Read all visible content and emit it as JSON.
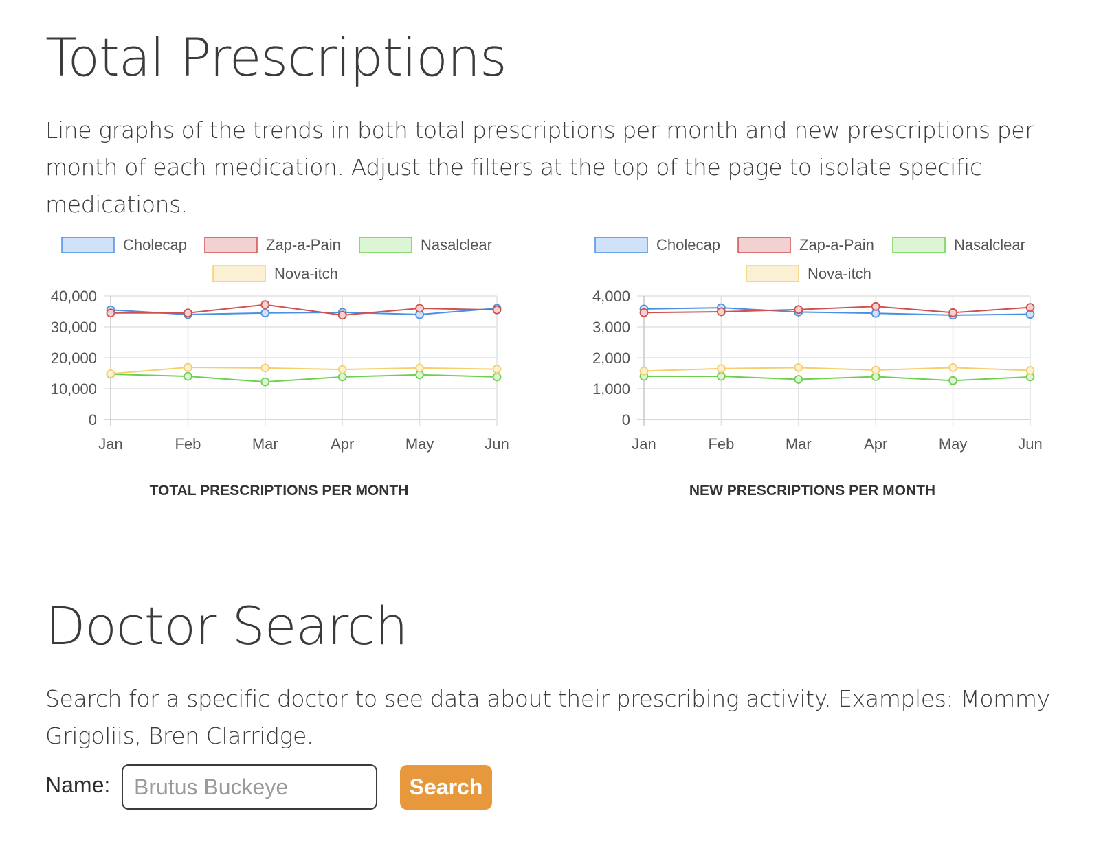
{
  "total_section": {
    "title": "Total Prescriptions",
    "description": "Line graphs of the trends in both total prescriptions per month and new prescriptions per month of each medication. Adjust the filters at the top of the page to isolate specific medications."
  },
  "doctor_section": {
    "title": "Doctor Search",
    "description": "Search for a specific doctor to see data about their prescribing activity. Examples: Mommy Grigoliis, Bren Clarridge.",
    "name_label": "Name:",
    "name_placeholder": "Brutus Buckeye",
    "search_button": "Search"
  },
  "chart_data": [
    {
      "type": "line",
      "title": "TOTAL PRESCRIPTIONS PER MONTH",
      "categories": [
        "Jan",
        "Feb",
        "Mar",
        "Apr",
        "May",
        "Jun"
      ],
      "ylim": [
        0,
        40000
      ],
      "yticks": [
        0,
        10000,
        20000,
        30000,
        40000
      ],
      "ytick_labels": [
        "0",
        "10,000",
        "20,000",
        "30,000",
        "40,000"
      ],
      "grid": true,
      "legend_position": "top",
      "series": [
        {
          "name": "Cholecap",
          "color": "#4a90e2",
          "fill": "#cfe2f9",
          "values": [
            35500,
            34000,
            34500,
            34700,
            34000,
            36000
          ]
        },
        {
          "name": "Zap-a-Pain",
          "color": "#d05050",
          "fill": "#f3d1d1",
          "values": [
            34500,
            34500,
            37200,
            33800,
            36000,
            35500
          ]
        },
        {
          "name": "Nasalclear",
          "color": "#6ecf4e",
          "fill": "#dcf5d4",
          "values": [
            14700,
            14000,
            12200,
            13800,
            14500,
            13800
          ]
        },
        {
          "name": "Nova-itch",
          "color": "#f5cf6e",
          "fill": "#fcf0d4",
          "values": [
            14800,
            16900,
            16700,
            16200,
            16700,
            16300
          ]
        }
      ]
    },
    {
      "type": "line",
      "title": "NEW PRESCRIPTIONS PER MONTH",
      "categories": [
        "Jan",
        "Feb",
        "Mar",
        "Apr",
        "May",
        "Jun"
      ],
      "ylim": [
        0,
        4000
      ],
      "yticks": [
        0,
        1000,
        2000,
        3000,
        4000
      ],
      "ytick_labels": [
        "0",
        "1,000",
        "2,000",
        "3,000",
        "4,000"
      ],
      "grid": true,
      "legend_position": "top",
      "series": [
        {
          "name": "Cholecap",
          "color": "#4a90e2",
          "fill": "#cfe2f9",
          "values": [
            3580,
            3620,
            3480,
            3440,
            3380,
            3410
          ]
        },
        {
          "name": "Zap-a-Pain",
          "color": "#d05050",
          "fill": "#f3d1d1",
          "values": [
            3460,
            3490,
            3560,
            3660,
            3460,
            3630
          ]
        },
        {
          "name": "Nasalclear",
          "color": "#6ecf4e",
          "fill": "#dcf5d4",
          "values": [
            1400,
            1400,
            1300,
            1390,
            1260,
            1380
          ]
        },
        {
          "name": "Nova-itch",
          "color": "#f5cf6e",
          "fill": "#fcf0d4",
          "values": [
            1570,
            1650,
            1680,
            1600,
            1680,
            1590
          ]
        }
      ]
    }
  ]
}
